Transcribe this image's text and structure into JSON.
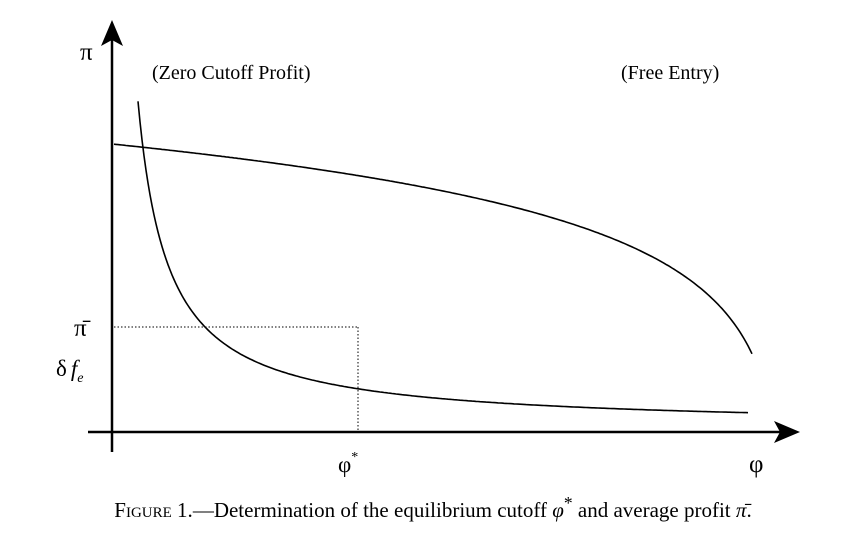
{
  "axes": {
    "y_label": "π",
    "x_label": "φ"
  },
  "curves": {
    "zero_cutoff_profit_label": "(Zero Cutoff Profit)",
    "free_entry_label": "(Free Entry)"
  },
  "ticks": {
    "pi_bar": "π̄",
    "delta_fe_delta": "δ",
    "delta_fe_f": "f",
    "delta_fe_sub": "e",
    "phi_star": "φ",
    "phi_star_sup": "*"
  },
  "caption": {
    "figure_label": "Figure 1.",
    "dash": "—",
    "text_before": "Determination of the equilibrium cutoff ",
    "phi_symbol": "φ",
    "phi_sup": "*",
    "text_middle": " and average profit ",
    "pi_bar_symbol": "π̄",
    "text_end": "."
  },
  "colors": {
    "ink": "#000000",
    "background": "#ffffff"
  }
}
